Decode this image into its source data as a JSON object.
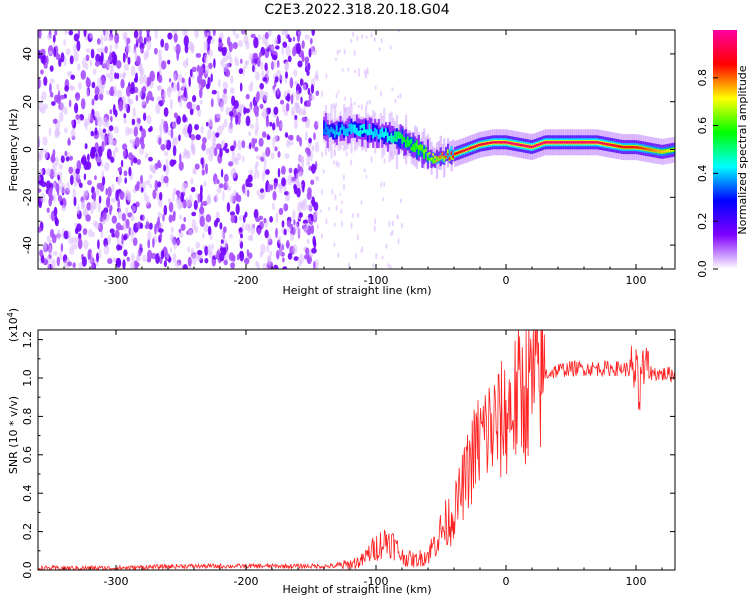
{
  "title": "C2E3.2022.318.20.18.G04",
  "chart_data": [
    {
      "type": "heatmap",
      "xlabel": "Height of straight line (km)",
      "ylabel": "Frequency (Hz)",
      "xlim": [
        -360,
        130
      ],
      "ylim": [
        -50,
        50
      ],
      "xticks": [
        -300,
        -200,
        -100,
        0,
        100
      ],
      "yticks": [
        -40,
        -20,
        0,
        20,
        40
      ],
      "colorbar": {
        "label": "Normalized spectral amplitude",
        "range": [
          0.0,
          1.0
        ],
        "ticks": [
          0.0,
          0.2,
          0.4,
          0.6,
          0.8
        ],
        "colors": [
          "#ffffff",
          "#8000ff",
          "#0000ff",
          "#00ffff",
          "#00ff00",
          "#ffff00",
          "#ff0000",
          "#ff00a0"
        ]
      },
      "noise_region": {
        "x": [
          -360,
          -145
        ],
        "y": [
          -50,
          50
        ],
        "amplitude": 0.15
      },
      "ridge": {
        "x": [
          -140,
          -130,
          -120,
          -110,
          -100,
          -90,
          -80,
          -70,
          -60,
          -55,
          -50,
          -40,
          -30,
          -20,
          -10,
          0,
          10,
          20,
          30,
          40,
          50,
          60,
          70,
          80,
          90,
          100,
          110,
          120,
          130
        ],
        "y": [
          8,
          8,
          9,
          8,
          7,
          6,
          4,
          1,
          -2,
          -4,
          -3,
          -2,
          0,
          2,
          3,
          3,
          2,
          1,
          3,
          3,
          3,
          3,
          3,
          2,
          1,
          1,
          0,
          -1,
          0
        ],
        "amplitude": [
          0.35,
          0.4,
          0.4,
          0.45,
          0.4,
          0.45,
          0.55,
          0.6,
          0.65,
          0.75,
          0.8,
          0.85,
          0.9,
          0.9,
          0.92,
          0.95,
          0.95,
          0.95,
          0.95,
          0.95,
          0.95,
          0.95,
          0.93,
          0.9,
          0.85,
          0.85,
          0.8,
          0.75,
          0.7
        ]
      }
    },
    {
      "type": "line",
      "xlabel": "Height of straight line (km)",
      "ylabel": "SNR (10 * v/v)",
      "y_multiplier": "(x10",
      "y_multiplier_exp": "4",
      "y_multiplier_close": ")",
      "xlim": [
        -360,
        130
      ],
      "ylim": [
        0,
        1.25
      ],
      "xticks": [
        -300,
        -200,
        -100,
        0,
        100
      ],
      "yticks": [
        "0.0",
        "0.2",
        "0.4",
        "0.6",
        "0.8",
        "1.0",
        "1.2"
      ],
      "color": "#ff2020",
      "series": [
        {
          "x": [
            -360,
            -300,
            -250,
            -200,
            -150,
            -130,
            -120,
            -110,
            -105,
            -100,
            -95,
            -90,
            -85,
            -80,
            -70,
            -60,
            -50,
            -45,
            -40,
            -35,
            -30,
            -25,
            -20,
            -15,
            -10,
            -5,
            0,
            5,
            10,
            15,
            20,
            25,
            30,
            40,
            50,
            60,
            70,
            80,
            90,
            95,
            100,
            102,
            105,
            110,
            120,
            130
          ],
          "y": [
            0.01,
            0.01,
            0.02,
            0.02,
            0.02,
            0.02,
            0.03,
            0.05,
            0.09,
            0.12,
            0.14,
            0.16,
            0.12,
            0.07,
            0.05,
            0.08,
            0.2,
            0.25,
            0.3,
            0.4,
            0.5,
            0.6,
            0.68,
            0.72,
            0.74,
            0.76,
            0.8,
            0.86,
            0.9,
            0.93,
            0.96,
            0.99,
            1.02,
            1.04,
            1.05,
            1.05,
            1.05,
            1.05,
            1.05,
            1.04,
            1.03,
            0.9,
            1.05,
            1.03,
            1.02,
            1.02
          ]
        }
      ]
    }
  ]
}
